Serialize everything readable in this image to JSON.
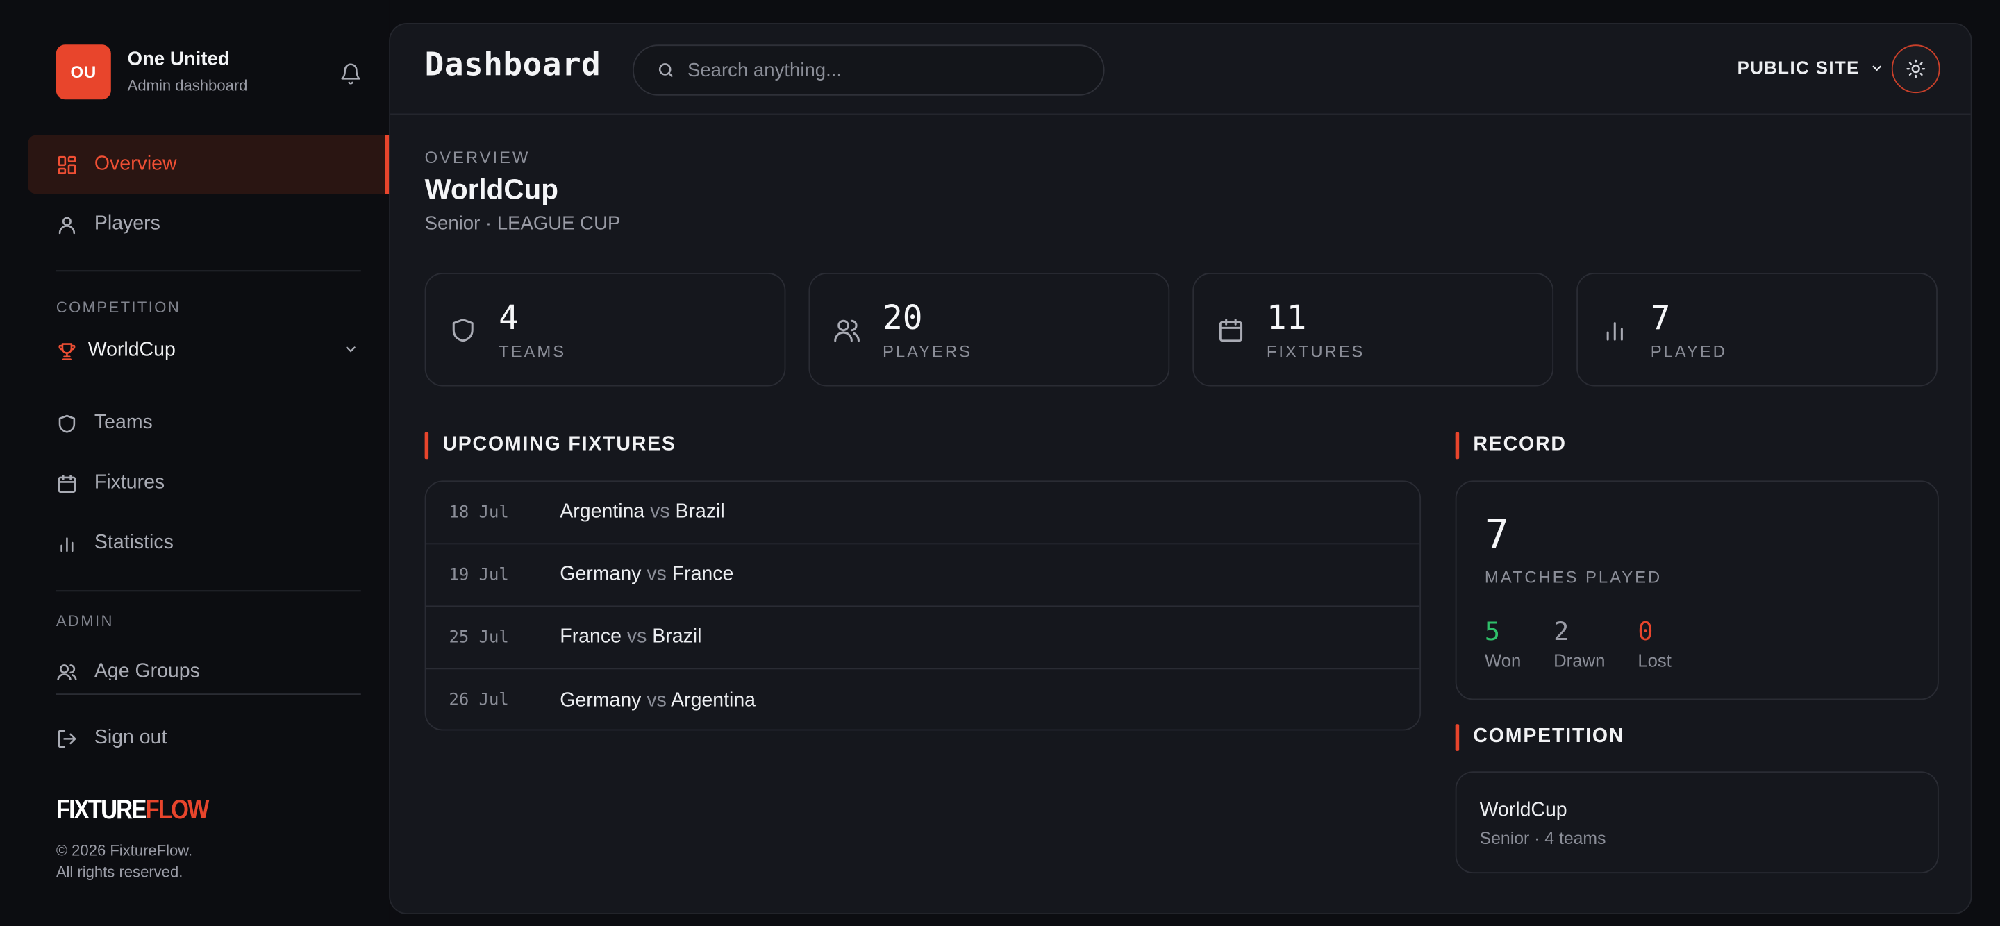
{
  "sidebar": {
    "brand": {
      "badge": "OU",
      "name": "One United",
      "subtitle": "Admin dashboard"
    },
    "nav": [
      {
        "label": "Overview",
        "icon": "dashboard-icon",
        "active": true
      },
      {
        "label": "Players",
        "icon": "user-icon",
        "active": false
      }
    ],
    "competition_label": "COMPETITION",
    "competition_select": "WorldCup",
    "competition_nav": [
      {
        "label": "Teams",
        "icon": "shield-icon"
      },
      {
        "label": "Fixtures",
        "icon": "calendar-icon"
      },
      {
        "label": "Statistics",
        "icon": "bar-chart-icon"
      }
    ],
    "admin_label": "ADMIN",
    "admin_nav": [
      {
        "label": "Age Groups",
        "icon": "users-icon"
      }
    ],
    "sign_out": "Sign out",
    "logo": {
      "part1": "FIXTURE",
      "part2": "FLOW"
    },
    "copyright_line1": "© 2026 FixtureFlow.",
    "copyright_line2": "All rights reserved."
  },
  "header": {
    "title": "Dashboard",
    "search_placeholder": "Search anything...",
    "public_site": "PUBLIC SITE"
  },
  "overview": {
    "overline": "OVERVIEW",
    "title": "WorldCup",
    "meta": "Senior · LEAGUE CUP"
  },
  "stats": [
    {
      "value": "4",
      "label": "TEAMS",
      "icon": "shield-icon"
    },
    {
      "value": "20",
      "label": "PLAYERS",
      "icon": "users-icon"
    },
    {
      "value": "11",
      "label": "FIXTURES",
      "icon": "calendar-icon"
    },
    {
      "value": "7",
      "label": "PLAYED",
      "icon": "bar-chart-icon"
    }
  ],
  "fixtures": {
    "heading": "UPCOMING FIXTURES",
    "vs": "vs",
    "rows": [
      {
        "date": "18 Jul",
        "home": "Argentina",
        "away": "Brazil"
      },
      {
        "date": "19 Jul",
        "home": "Germany",
        "away": "France"
      },
      {
        "date": "25 Jul",
        "home": "France",
        "away": "Brazil"
      },
      {
        "date": "26 Jul",
        "home": "Germany",
        "away": "Argentina"
      }
    ]
  },
  "record": {
    "heading": "RECORD",
    "played": "7",
    "played_label": "MATCHES PLAYED",
    "won": "5",
    "won_label": "Won",
    "drawn": "2",
    "drawn_label": "Drawn",
    "lost": "0",
    "lost_label": "Lost"
  },
  "competition": {
    "heading": "COMPETITION",
    "name": "WorldCup",
    "meta": "Senior · 4 teams"
  },
  "colors": {
    "accent": "#e8452c",
    "won": "#2fc06a",
    "lost": "#e8452c",
    "background": "#0c0d11",
    "panel": "#15171d"
  }
}
